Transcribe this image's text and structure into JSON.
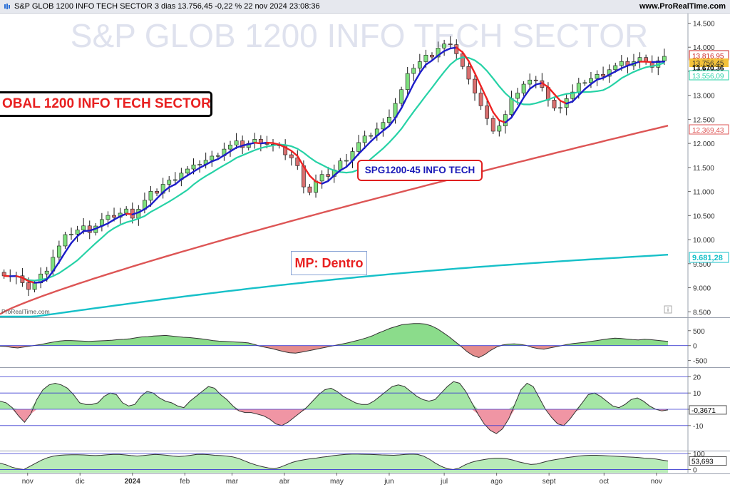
{
  "header": {
    "title": "S&P GLOB 1200 INFO TECH SECTOR 3 dias 13.756,45 -0,22 % 22 nov 2024 23:08:36",
    "website": "www.ProRealTime.com"
  },
  "watermark": "S&P GLOB 1200 INFO TECH SECTOR",
  "brand": "ProRealTime.com",
  "annotations": {
    "sector_box": "OBAL 1200 INFO TECH SECTOR",
    "ticker_box": "SPG1200-45 INFO TECH",
    "mp_box": "MP: Dentro"
  },
  "info_icon": "i",
  "chart_data": [
    {
      "type": "candlestick",
      "title": "S&P GLOB 1200 INFO TECH SECTOR",
      "xlabel": "",
      "ylabel": "",
      "ylim": [
        8400,
        14700
      ],
      "y_ticks": [
        8500,
        9000,
        9500,
        10000,
        10500,
        11000,
        11500,
        12000,
        12500,
        13000,
        13500,
        14000,
        14500
      ],
      "y_tick_labels": [
        "8.500",
        "9.000",
        "9.500",
        "10.000",
        "10.500",
        "11.000",
        "11.500",
        "12.000",
        "12.500",
        "13.000",
        "13.500",
        "14.000",
        "14.500"
      ],
      "x_ticks": [
        {
          "label": "nov",
          "bar": 4.5
        },
        {
          "label": "dic",
          "bar": 14.5
        },
        {
          "label": "2024",
          "bar": 24.5
        },
        {
          "label": "feb",
          "bar": 34.5
        },
        {
          "label": "mar",
          "bar": 43.5
        },
        {
          "label": "abr",
          "bar": 53.5
        },
        {
          "label": "may",
          "bar": 63.5
        },
        {
          "label": "jun",
          "bar": 73.5
        },
        {
          "label": "jul",
          "bar": 84
        },
        {
          "label": "ago",
          "bar": 94
        },
        {
          "label": "sept",
          "bar": 104
        },
        {
          "label": "oct",
          "bar": 114.5
        },
        {
          "label": "nov",
          "bar": 124.5
        }
      ],
      "x_bars": 128,
      "closes": [
        9300,
        9250,
        9230,
        9050,
        9000,
        9100,
        9250,
        9400,
        9650,
        9850,
        10050,
        10150,
        10200,
        10250,
        10200,
        10300,
        10400,
        10450,
        10500,
        10550,
        10600,
        10500,
        10650,
        10800,
        10950,
        11000,
        11150,
        11200,
        11300,
        11400,
        11450,
        11500,
        11600,
        11650,
        11700,
        11800,
        11900,
        11950,
        12000,
        11950,
        12000,
        12050,
        12050,
        12000,
        11950,
        11900,
        11800,
        11700,
        11500,
        11150,
        11000,
        11200,
        11300,
        11350,
        11450,
        11600,
        11700,
        11850,
        12000,
        12100,
        12200,
        12300,
        12400,
        12600,
        12850,
        13100,
        13400,
        13600,
        13700,
        13800,
        13850,
        14000,
        14050,
        14000,
        13900,
        13600,
        13300,
        13100,
        12800,
        12500,
        12200,
        12400,
        12600,
        12900,
        13100,
        13250,
        13300,
        13250,
        13200,
        12900,
        12700,
        12800,
        12950,
        13050,
        13200,
        13300,
        13350,
        13400,
        13450,
        13550,
        13600,
        13650,
        13650,
        13700,
        13750,
        13750,
        13600,
        13700,
        13756
      ],
      "current_price_label": "13.670,36",
      "price_labels": [
        {
          "text": "13.816,95",
          "color": "#cc2222"
        },
        {
          "text": "13.756,45",
          "color": "#333333"
        },
        {
          "text": "13.556,09",
          "color": "#26d2a6"
        },
        {
          "text": "12.369,43",
          "color": "#dd5555"
        },
        {
          "text": "9.681,28",
          "color": "#16c0c8"
        }
      ],
      "series": [
        {
          "name": "",
          "color": "#26d2a6"
        },
        {
          "name": "",
          "color": "#dd5555"
        },
        {
          "name": "",
          "color": "#16c0c8"
        }
      ],
      "colors": {
        "up": "#7ee07e",
        "down": "#d96f6f",
        "signal_up": "#1c1cc8",
        "signal_down": "#ee2222"
      }
    },
    {
      "type": "area",
      "title": "",
      "ylim": [
        -700,
        900
      ],
      "y_tick_labels": [
        "500",
        "0",
        "-500"
      ],
      "y_ticks": [
        500,
        0,
        -500
      ],
      "values": [
        -20,
        -30,
        -60,
        -80,
        -50,
        -20,
        10,
        40,
        80,
        120,
        150,
        170,
        170,
        160,
        150,
        140,
        150,
        160,
        170,
        180,
        200,
        210,
        230,
        260,
        290,
        300,
        320,
        330,
        340,
        320,
        300,
        280,
        270,
        250,
        230,
        200,
        170,
        150,
        140,
        130,
        120,
        110,
        90,
        40,
        -20,
        -60,
        -100,
        -150,
        -200,
        -240,
        -250,
        -220,
        -180,
        -140,
        -100,
        -60,
        -20,
        20,
        60,
        100,
        150,
        200,
        260,
        330,
        420,
        500,
        580,
        640,
        700,
        720,
        740,
        740,
        720,
        660,
        560,
        430,
        290,
        130,
        -30,
        -200,
        -330,
        -400,
        -300,
        -160,
        -50,
        20,
        50,
        60,
        40,
        10,
        -60,
        -100,
        -120,
        -80,
        -40,
        0,
        40,
        70,
        90,
        110,
        140,
        170,
        200,
        230,
        250,
        240,
        220,
        200,
        190,
        210,
        200,
        180,
        160,
        140
      ],
      "colors": {
        "positive": "#7ed87e",
        "negative": "#e28080"
      }
    },
    {
      "type": "area",
      "title": "",
      "ylim": [
        -25,
        25
      ],
      "y_tick_labels": [
        "20",
        "10",
        "0",
        "-10"
      ],
      "y_ticks": [
        20,
        10,
        0,
        -10
      ],
      "current_value_label": "-0,3671",
      "values": [
        5,
        4,
        1,
        -4,
        -8,
        -3,
        6,
        12,
        15,
        16,
        15,
        13,
        9,
        4,
        3,
        3,
        4,
        8,
        10,
        9,
        4,
        2,
        3,
        8,
        11,
        10,
        7,
        5,
        4,
        2,
        1,
        5,
        8,
        11,
        14,
        13,
        9,
        6,
        2,
        -1,
        -2,
        -2,
        -3,
        -4,
        -6,
        -9,
        -10,
        -8,
        -5,
        -2,
        1,
        5,
        9,
        12,
        13,
        11,
        8,
        6,
        4,
        3,
        3,
        5,
        8,
        11,
        14,
        15,
        14,
        11,
        8,
        6,
        5,
        6,
        10,
        14,
        17,
        16,
        11,
        4,
        -3,
        -9,
        -13,
        -15,
        -12,
        -6,
        3,
        12,
        16,
        14,
        7,
        0,
        -5,
        -9,
        -10,
        -6,
        -1,
        4,
        9,
        10,
        8,
        5,
        2,
        1,
        3,
        6,
        7,
        5,
        2,
        0,
        -1,
        -0.4
      ],
      "colors": {
        "positive": "#9be39b",
        "negative": "#ee8a9a"
      }
    },
    {
      "type": "area",
      "title": "",
      "ylim": [
        -20,
        110
      ],
      "y_tick_labels": [
        "100",
        "0"
      ],
      "y_ticks": [
        100,
        0
      ],
      "current_value_label": "53,693",
      "values": [
        40,
        30,
        15,
        5,
        0,
        20,
        40,
        60,
        75,
        85,
        90,
        92,
        93,
        93,
        92,
        90,
        88,
        90,
        93,
        95,
        95,
        92,
        88,
        85,
        88,
        92,
        95,
        93,
        90,
        85,
        82,
        85,
        90,
        95,
        96,
        94,
        90,
        88,
        85,
        80,
        70,
        55,
        40,
        28,
        18,
        10,
        5,
        15,
        30,
        45,
        55,
        62,
        68,
        72,
        78,
        82,
        88,
        92,
        95,
        97,
        97,
        96,
        95,
        94,
        92,
        91,
        90,
        92,
        95,
        97,
        95,
        85,
        65,
        40,
        20,
        5,
        0,
        10,
        30,
        45,
        55,
        62,
        68,
        72,
        72,
        68,
        60,
        48,
        40,
        32,
        35,
        45,
        55,
        62,
        68,
        75,
        80,
        85,
        88,
        90,
        90,
        88,
        86,
        84,
        82,
        80,
        78,
        76,
        72,
        70,
        66,
        60,
        54
      ],
      "colors": {
        "fill": "#a6e6a6"
      }
    }
  ]
}
